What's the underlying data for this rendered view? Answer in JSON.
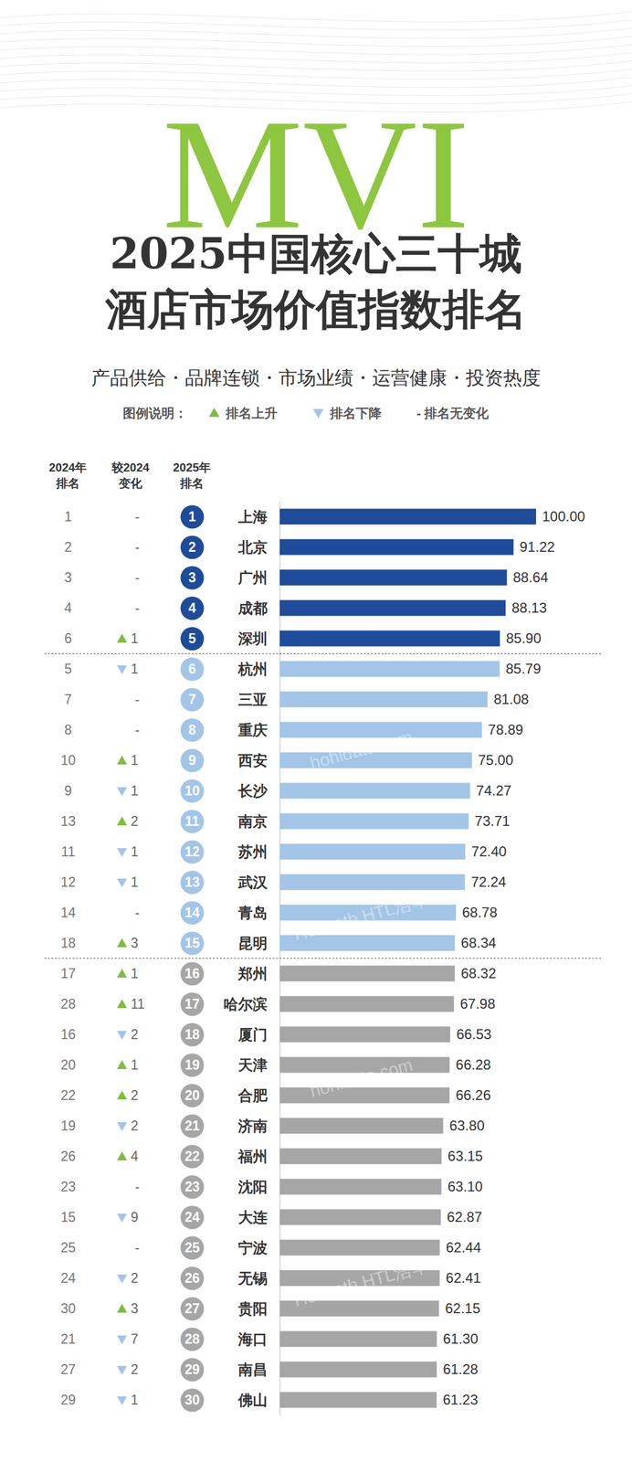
{
  "chart_data": {
    "type": "bar",
    "orientation": "horizontal",
    "logo": "MVI",
    "title": [
      "2025中国核心三十城",
      "酒店市场价值指数排名"
    ],
    "subtitle": "产品供给・品牌连锁・市场业绩・运营健康・投资热度",
    "legend_title": "图例说明：",
    "legend_labels": [
      "排名上升",
      "排名下降",
      "- 排名无变化"
    ],
    "column_headers": [
      "2024年排名",
      "较2024变化",
      "2025年排名"
    ],
    "annotations": [
      "hohidata.com",
      "hohidata.com",
      "Horwath HTL浩华",
      "Horwath HTL浩华"
    ],
    "categories": [
      "上海",
      "北京",
      "广州",
      "成都",
      "深圳",
      "杭州",
      "三亚",
      "重庆",
      "西安",
      "长沙",
      "南京",
      "苏州",
      "武汉",
      "青岛",
      "昆明",
      "郑州",
      "哈尔滨",
      "厦门",
      "天津",
      "合肥",
      "济南",
      "福州",
      "沈阳",
      "大连",
      "宁波",
      "无锡",
      "贵阳",
      "海口",
      "南昌",
      "佛山"
    ],
    "values": [
      100.0,
      91.22,
      88.64,
      88.13,
      85.9,
      85.79,
      81.08,
      78.89,
      75.0,
      74.27,
      73.71,
      72.4,
      72.24,
      68.78,
      68.34,
      68.32,
      67.98,
      66.53,
      66.28,
      66.26,
      63.8,
      63.15,
      63.1,
      62.87,
      62.44,
      62.41,
      62.15,
      61.3,
      61.28,
      61.23
    ],
    "value_labels": [
      "100.00",
      "91.22",
      "88.64",
      "88.13",
      "85.90",
      "85.79",
      "81.08",
      "78.89",
      "75.00",
      "74.27",
      "73.71",
      "72.40",
      "72.24",
      "68.78",
      "68.34",
      "68.32",
      "67.98",
      "66.53",
      "66.28",
      "66.26",
      "63.80",
      "63.15",
      "63.10",
      "62.87",
      "62.44",
      "62.41",
      "62.15",
      "61.30",
      "61.28",
      "61.23"
    ],
    "rank_2024": [
      1,
      2,
      3,
      4,
      6,
      5,
      7,
      8,
      10,
      9,
      13,
      11,
      12,
      14,
      18,
      17,
      28,
      16,
      20,
      22,
      19,
      26,
      23,
      15,
      25,
      24,
      30,
      21,
      27,
      29
    ],
    "change": [
      0,
      0,
      0,
      0,
      1,
      -1,
      0,
      0,
      1,
      -1,
      2,
      -1,
      -1,
      0,
      3,
      1,
      11,
      -2,
      1,
      2,
      -2,
      4,
      0,
      -9,
      0,
      -2,
      3,
      -7,
      -2,
      -1
    ],
    "change_labels": [
      "-",
      "-",
      "-",
      "-",
      "1",
      "1",
      "-",
      "-",
      "1",
      "1",
      "2",
      "1",
      "1",
      "-",
      "3",
      "1",
      "11",
      "2",
      "1",
      "2",
      "2",
      "4",
      "-",
      "9",
      "-",
      "2",
      "3",
      "7",
      "2",
      "1"
    ],
    "rank_2025": [
      1,
      2,
      3,
      4,
      5,
      6,
      7,
      8,
      9,
      10,
      11,
      12,
      13,
      14,
      15,
      16,
      17,
      18,
      19,
      20,
      21,
      22,
      23,
      24,
      25,
      26,
      27,
      28,
      29,
      30
    ],
    "colors": [
      "#1f4b9b",
      "#1f4b9b",
      "#1f4b9b",
      "#1f4b9b",
      "#1f4b9b",
      "#a3c5e7",
      "#a3c5e7",
      "#a3c5e7",
      "#a3c5e7",
      "#a3c5e7",
      "#a3c5e7",
      "#a3c5e7",
      "#a3c5e7",
      "#a3c5e7",
      "#a3c5e7",
      "#a6a6a6",
      "#a6a6a6",
      "#a6a6a6",
      "#a6a6a6",
      "#a6a6a6",
      "#a6a6a6",
      "#a6a6a6",
      "#a6a6a6",
      "#a6a6a6",
      "#a6a6a6",
      "#a6a6a6",
      "#a6a6a6",
      "#a6a6a6",
      "#a6a6a6",
      "#a6a6a6"
    ],
    "xlim": [
      0,
      100
    ],
    "tick_labels": false,
    "grid": false,
    "data_labels": true
  }
}
